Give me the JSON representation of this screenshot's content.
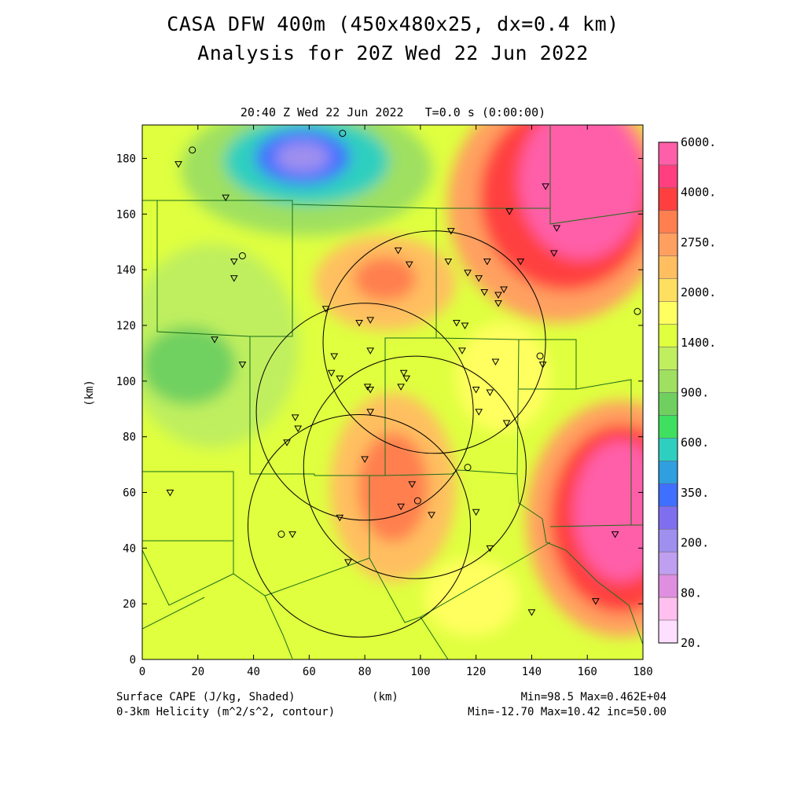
{
  "title_line1": "CASA DFW 400m (450x480x25, dx=0.4 km)",
  "title_line2": "Analysis for 20Z Wed 22 Jun 2022",
  "subtitle": "20:40 Z Wed 22 Jun 2022   T=0.0 s (0:00:00)",
  "axes": {
    "xlabel": "(km)",
    "ylabel": "(km)",
    "xticks": [
      "0",
      "20",
      "40",
      "60",
      "80",
      "100",
      "120",
      "140",
      "160",
      "180"
    ],
    "yticks": [
      "0",
      "20",
      "40",
      "60",
      "80",
      "100",
      "120",
      "140",
      "160",
      "180"
    ],
    "xlim": [
      0,
      180
    ],
    "ylim": [
      0,
      192
    ]
  },
  "colorbar": {
    "labels": [
      "6000.",
      "4000.",
      "2750.",
      "2000.",
      "1400.",
      "900.",
      "600.",
      "350.",
      "200.",
      "80.",
      "20."
    ],
    "colors": [
      "#ff5fa8",
      "#ff3f7f",
      "#ff3f3f",
      "#ff7f50",
      "#ffa060",
      "#ffbf60",
      "#ffdf5f",
      "#ffff5f",
      "#dfff3f",
      "#bfef5f",
      "#9fe060",
      "#6fd060",
      "#3fdf5f",
      "#2fcfbf",
      "#2f9fdf",
      "#3f6fff",
      "#7f6fef",
      "#9f8fef",
      "#bf9fef",
      "#df8fdf",
      "#ffbfef",
      "#ffdfff"
    ]
  },
  "footer": {
    "left1": "Surface CAPE (J/kg, Shaded)",
    "left2": "0-3km Helicity (m^2/s^2, contour)",
    "center": "(km)",
    "right1": "Min=98.5 Max=0.462E+04",
    "right2": "Min=-12.70 Max=10.42 inc=50.00"
  },
  "radar_rings": [
    {
      "x": 78,
      "y": 48,
      "r": 40
    },
    {
      "x": 80,
      "y": 89,
      "r": 39
    },
    {
      "x": 105,
      "y": 114,
      "r": 40
    },
    {
      "x": 98,
      "y": 69,
      "r": 40
    }
  ],
  "stations_tri": [
    [
      13,
      178
    ],
    [
      33,
      143
    ],
    [
      33,
      137
    ],
    [
      30,
      166
    ],
    [
      26,
      115
    ],
    [
      36,
      106
    ],
    [
      10,
      60
    ],
    [
      66,
      126
    ],
    [
      68,
      103
    ],
    [
      69,
      109
    ],
    [
      71,
      101
    ],
    [
      78,
      121
    ],
    [
      82,
      122
    ],
    [
      82,
      111
    ],
    [
      81,
      98
    ],
    [
      82,
      97
    ],
    [
      82,
      89
    ],
    [
      92,
      147
    ],
    [
      93,
      98
    ],
    [
      94,
      103
    ],
    [
      95,
      101
    ],
    [
      96,
      142
    ],
    [
      110,
      143
    ],
    [
      111,
      154
    ],
    [
      113,
      121
    ],
    [
      116,
      120
    ],
    [
      115,
      111
    ],
    [
      117,
      139
    ],
    [
      121,
      137
    ],
    [
      120,
      97
    ],
    [
      121,
      89
    ],
    [
      123,
      132
    ],
    [
      124,
      143
    ],
    [
      125,
      96
    ],
    [
      127,
      107
    ],
    [
      128,
      131
    ],
    [
      128,
      128
    ],
    [
      130,
      133
    ],
    [
      131,
      85
    ],
    [
      132,
      161
    ],
    [
      145,
      170
    ],
    [
      148,
      146
    ],
    [
      149,
      155
    ],
    [
      144,
      106
    ],
    [
      136,
      143
    ],
    [
      55,
      87
    ],
    [
      56,
      83
    ],
    [
      52,
      78
    ],
    [
      80,
      72
    ],
    [
      93,
      55
    ],
    [
      97,
      63
    ],
    [
      104,
      52
    ],
    [
      71,
      51
    ],
    [
      74,
      35
    ],
    [
      54,
      45
    ],
    [
      120,
      53
    ],
    [
      125,
      40
    ],
    [
      140,
      17
    ],
    [
      163,
      21
    ],
    [
      170,
      45
    ]
  ],
  "stations_circle": [
    [
      18,
      183
    ],
    [
      36,
      145
    ],
    [
      72,
      189
    ],
    [
      50,
      45
    ],
    [
      99,
      57
    ],
    [
      117,
      69
    ],
    [
      143,
      109
    ],
    [
      178,
      125
    ]
  ]
}
